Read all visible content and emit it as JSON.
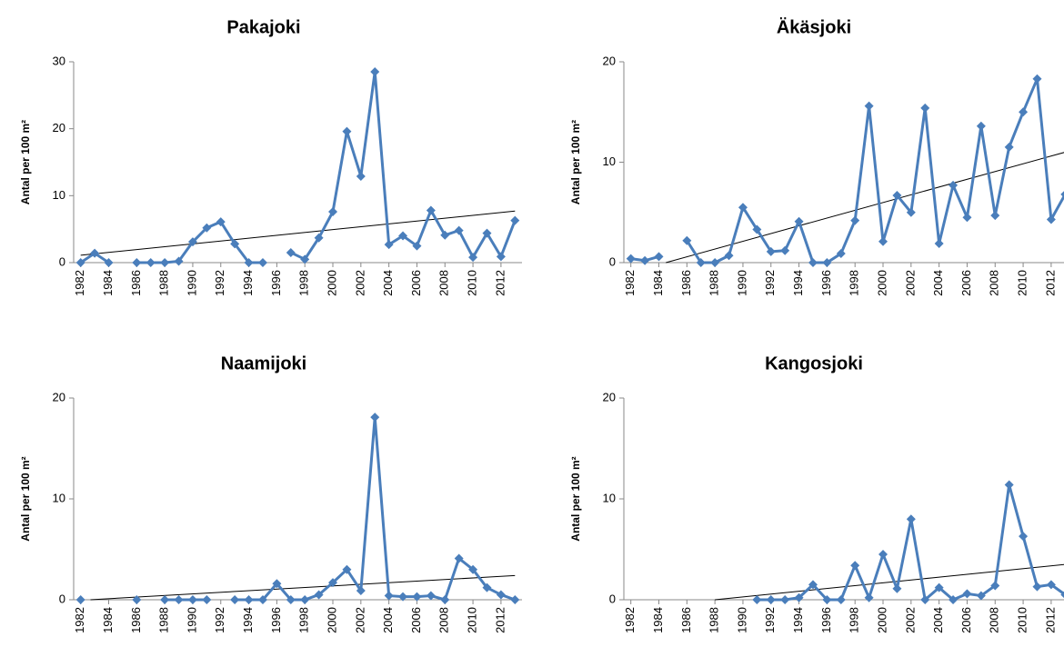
{
  "chart_data": [
    {
      "type": "line",
      "title": "Pakajoki",
      "y_label": "Antal per 100 m²",
      "color": "#4a7ebb",
      "x": [
        1982,
        1983,
        1984,
        1985,
        1986,
        1987,
        1988,
        1989,
        1990,
        1991,
        1992,
        1993,
        1994,
        1995,
        1996,
        1997,
        1998,
        1999,
        2000,
        2001,
        2002,
        2003,
        2004,
        2005,
        2006,
        2007,
        2008,
        2009,
        2010,
        2011,
        2012,
        2013
      ],
      "values": [
        0,
        1.4,
        0,
        null,
        0,
        0,
        0,
        0.2,
        3.1,
        5.2,
        6.1,
        2.8,
        0,
        0,
        null,
        1.5,
        0.5,
        3.7,
        7.6,
        19.6,
        12.9,
        28.5,
        2.7,
        4.0,
        2.5,
        7.8,
        4.1,
        4.8,
        0.8,
        4.4,
        0.9,
        6.3
      ],
      "trendline": {
        "x": [
          1982,
          2013
        ],
        "values": [
          1.1,
          7.7
        ]
      },
      "xlim": [
        1981.5,
        2013.5
      ],
      "xticks": [
        1982,
        1984,
        1986,
        1988,
        1990,
        1992,
        1994,
        1996,
        1998,
        2000,
        2002,
        2004,
        2006,
        2008,
        2010,
        2012
      ],
      "ylim": [
        0,
        30
      ],
      "yticks": [
        0,
        10,
        20,
        30
      ]
    },
    {
      "type": "line",
      "title": "Äkäsjoki",
      "y_label": "Antal per 100 m²",
      "color": "#4a7ebb",
      "x": [
        1982,
        1983,
        1984,
        1985,
        1986,
        1987,
        1988,
        1989,
        1990,
        1991,
        1992,
        1993,
        1994,
        1995,
        1996,
        1997,
        1998,
        1999,
        2000,
        2001,
        2002,
        2003,
        2004,
        2005,
        2006,
        2007,
        2008,
        2009,
        2010,
        2011,
        2012,
        2013
      ],
      "values": [
        0.4,
        0.2,
        0.6,
        null,
        2.2,
        0,
        0,
        0.7,
        5.5,
        3.3,
        1.1,
        1.2,
        4.1,
        0,
        0,
        0.9,
        4.2,
        15.6,
        2.1,
        6.7,
        5.0,
        15.4,
        1.9,
        7.7,
        4.5,
        13.6,
        4.7,
        11.5,
        15.0,
        18.3,
        4.3,
        6.8
      ],
      "trendline": {
        "x": [
          1984.5,
          2013
        ],
        "values": [
          0,
          11
        ]
      },
      "xlim": [
        1981.5,
        2013.5
      ],
      "xticks": [
        1982,
        1984,
        1986,
        1988,
        1990,
        1992,
        1994,
        1996,
        1998,
        2000,
        2002,
        2004,
        2006,
        2008,
        2010,
        2012
      ],
      "ylim": [
        0,
        20
      ],
      "yticks": [
        0,
        10,
        20
      ]
    },
    {
      "type": "line",
      "title": "Naamijoki",
      "y_label": "Antal per 100 m²",
      "color": "#4a7ebb",
      "x": [
        1982,
        1983,
        1984,
        1985,
        1986,
        1987,
        1988,
        1989,
        1990,
        1991,
        1992,
        1993,
        1994,
        1995,
        1996,
        1997,
        1998,
        1999,
        2000,
        2001,
        2002,
        2003,
        2004,
        2005,
        2006,
        2007,
        2008,
        2009,
        2010,
        2011,
        2012,
        2013
      ],
      "values": [
        0,
        null,
        null,
        null,
        0,
        null,
        0,
        0,
        0,
        0,
        null,
        0,
        0,
        0,
        1.6,
        0,
        0,
        0.5,
        1.7,
        3.0,
        0.9,
        18.1,
        0.4,
        0.3,
        0.3,
        0.4,
        0,
        4.1,
        3.0,
        1.2,
        0.5,
        0
      ],
      "trendline": {
        "x": [
          1982.7,
          2013
        ],
        "values": [
          0,
          2.4
        ]
      },
      "xlim": [
        1981.5,
        2013.5
      ],
      "xticks": [
        1982,
        1984,
        1986,
        1988,
        1990,
        1992,
        1994,
        1996,
        1998,
        2000,
        2002,
        2004,
        2006,
        2008,
        2010,
        2012
      ],
      "ylim": [
        0,
        20
      ],
      "yticks": [
        0,
        10,
        20
      ]
    },
    {
      "type": "line",
      "title": "Kangosjoki",
      "y_label": "Antal per 100 m²",
      "color": "#4a7ebb",
      "x": [
        1982,
        1983,
        1984,
        1985,
        1986,
        1987,
        1988,
        1989,
        1990,
        1991,
        1992,
        1993,
        1994,
        1995,
        1996,
        1997,
        1998,
        1999,
        2000,
        2001,
        2002,
        2003,
        2004,
        2005,
        2006,
        2007,
        2008,
        2009,
        2010,
        2011,
        2012,
        2013
      ],
      "values": [
        null,
        null,
        null,
        null,
        null,
        null,
        null,
        null,
        null,
        0,
        0,
        0,
        0.2,
        1.5,
        0,
        0,
        3.4,
        0.2,
        4.5,
        1.1,
        8.0,
        0,
        1.2,
        0,
        0.6,
        0.4,
        1.4,
        11.4,
        6.3,
        1.3,
        1.5,
        0.5
      ],
      "trendline": {
        "x": [
          1988,
          2013
        ],
        "values": [
          0,
          3.5
        ]
      },
      "xlim": [
        1981.5,
        2013.5
      ],
      "xticks": [
        1982,
        1984,
        1986,
        1988,
        1990,
        1992,
        1994,
        1996,
        1998,
        2000,
        2002,
        2004,
        2006,
        2008,
        2010,
        2012
      ],
      "ylim": [
        0,
        20
      ],
      "yticks": [
        0,
        10,
        20
      ]
    }
  ]
}
